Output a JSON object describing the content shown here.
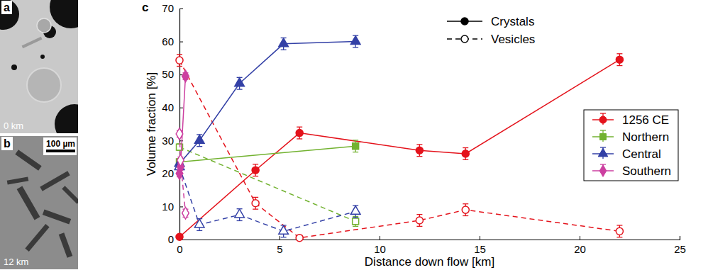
{
  "images": [
    {
      "letter": "a",
      "caption": "0 km"
    },
    {
      "letter": "b",
      "caption": "12 km",
      "scale_bar": "100 µm"
    }
  ],
  "chart_label": "c",
  "chart_data": {
    "type": "line",
    "x_label": "Distance down flow [km]",
    "y_label": "Volume fraction [%]",
    "xlim": [
      0,
      25
    ],
    "xticks": [
      0,
      5,
      10,
      15,
      20,
      25
    ],
    "ylim": [
      0,
      70
    ],
    "yticks": [
      0,
      10,
      20,
      30,
      40,
      50,
      60,
      70
    ],
    "grid": false,
    "legend": "right",
    "phases": [
      {
        "name": "Crystals",
        "line_style": "solid",
        "marker": "filled"
      },
      {
        "name": "Vesicles",
        "line_style": "dashed",
        "marker": "open"
      }
    ],
    "series": [
      {
        "name": "1256 CE",
        "color": "#e4131c",
        "marker": "circle",
        "x": [
          0,
          3.8,
          6,
          12,
          14.3,
          22
        ],
        "values": [
          0.8,
          21,
          32.3,
          27,
          26,
          54.5
        ],
        "errors": [
          0.5,
          1.8,
          1.8,
          1.8,
          1.8,
          1.8
        ],
        "vesicles": [
          54.3,
          11,
          0.5,
          5.8,
          9,
          2.5
        ],
        "vesicle_errors": [
          1.8,
          1.8,
          0.5,
          1.8,
          1.8,
          1.8
        ]
      },
      {
        "name": "Northern",
        "color": "#72b230",
        "marker": "square",
        "x": [
          0,
          8.8
        ],
        "values": [
          23.5,
          28.3
        ],
        "errors": [
          1,
          1.8
        ],
        "vesicles": [
          28,
          5.5
        ],
        "vesicle_errors": [
          1,
          1.5
        ]
      },
      {
        "name": "Central",
        "color": "#3340a6",
        "marker": "triangle",
        "x": [
          0,
          1,
          3,
          5.2,
          8.8
        ],
        "values": [
          23,
          30,
          47.3,
          59.3,
          60
        ],
        "errors": [
          1,
          1.8,
          1.8,
          1.8,
          1.8
        ],
        "vesicles": [
          22,
          4.5,
          7.5,
          2.5,
          8.5
        ],
        "vesicle_errors": [
          1,
          1.8,
          1.8,
          1.8,
          1.8
        ]
      },
      {
        "name": "Southern",
        "color": "#cc3fa0",
        "marker": "diamond",
        "x": [
          0,
          0.05,
          0.3
        ],
        "values": [
          20,
          22,
          49.5
        ],
        "errors": [
          1,
          1,
          1
        ],
        "vesicles": [
          32,
          24,
          8
        ],
        "vesicle_errors": [
          1,
          1,
          1.2
        ]
      }
    ]
  }
}
